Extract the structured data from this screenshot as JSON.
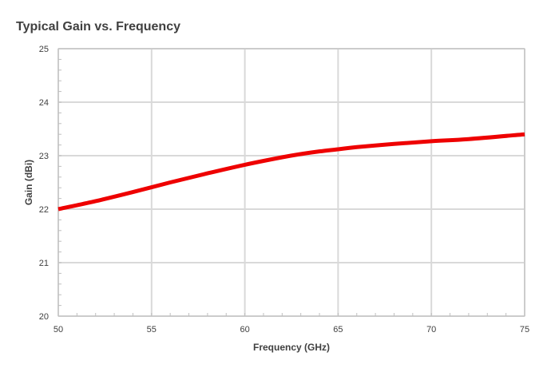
{
  "chart_data": {
    "type": "line",
    "title": "Typical Gain vs. Frequency",
    "xlabel": "Frequency (GHz)",
    "ylabel": "Gain (dBi)",
    "xlim": [
      50,
      75
    ],
    "ylim": [
      20,
      25
    ],
    "xticks": [
      50,
      55,
      60,
      65,
      70,
      75
    ],
    "yticks": [
      20,
      21,
      22,
      23,
      24,
      25
    ],
    "grid": true,
    "series": [
      {
        "color": "#ee0000",
        "x": [
          50,
          52,
          54,
          56,
          58,
          60,
          62,
          63,
          64,
          65,
          66,
          68,
          70,
          72,
          75
        ],
        "y": [
          22.0,
          22.15,
          22.32,
          22.5,
          22.67,
          22.83,
          22.97,
          23.03,
          23.08,
          23.12,
          23.16,
          23.22,
          23.27,
          23.31,
          23.4
        ]
      }
    ]
  }
}
